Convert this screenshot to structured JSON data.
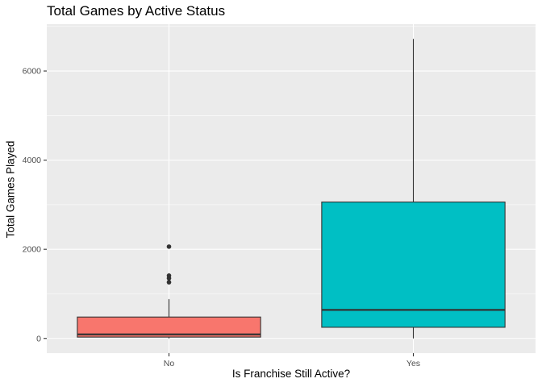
{
  "chart_data": {
    "type": "box",
    "title": "Total Games by Active Status",
    "xlabel": "Is Franchise Still Active?",
    "ylabel": "Total Games Played",
    "grid": true,
    "legend": "none",
    "ylim": [
      -330,
      7050
    ],
    "yticks": [
      0,
      2000,
      4000,
      6000
    ],
    "ytick_labels": [
      "0",
      "2000",
      "4000",
      "6000"
    ],
    "categories": [
      "No",
      "Yes"
    ],
    "boxes": [
      {
        "category": "No",
        "fill": "#F8766D",
        "whisker_low": 0,
        "q1": 30,
        "median": 90,
        "q3": 480,
        "whisker_high": 880,
        "outliers": [
          1260,
          1350,
          1410,
          2060
        ]
      },
      {
        "category": "Yes",
        "fill": "#00BFC4",
        "whisker_low": 0,
        "q1": 250,
        "median": 640,
        "q3": 3060,
        "whisker_high": 6720,
        "outliers": []
      }
    ]
  }
}
